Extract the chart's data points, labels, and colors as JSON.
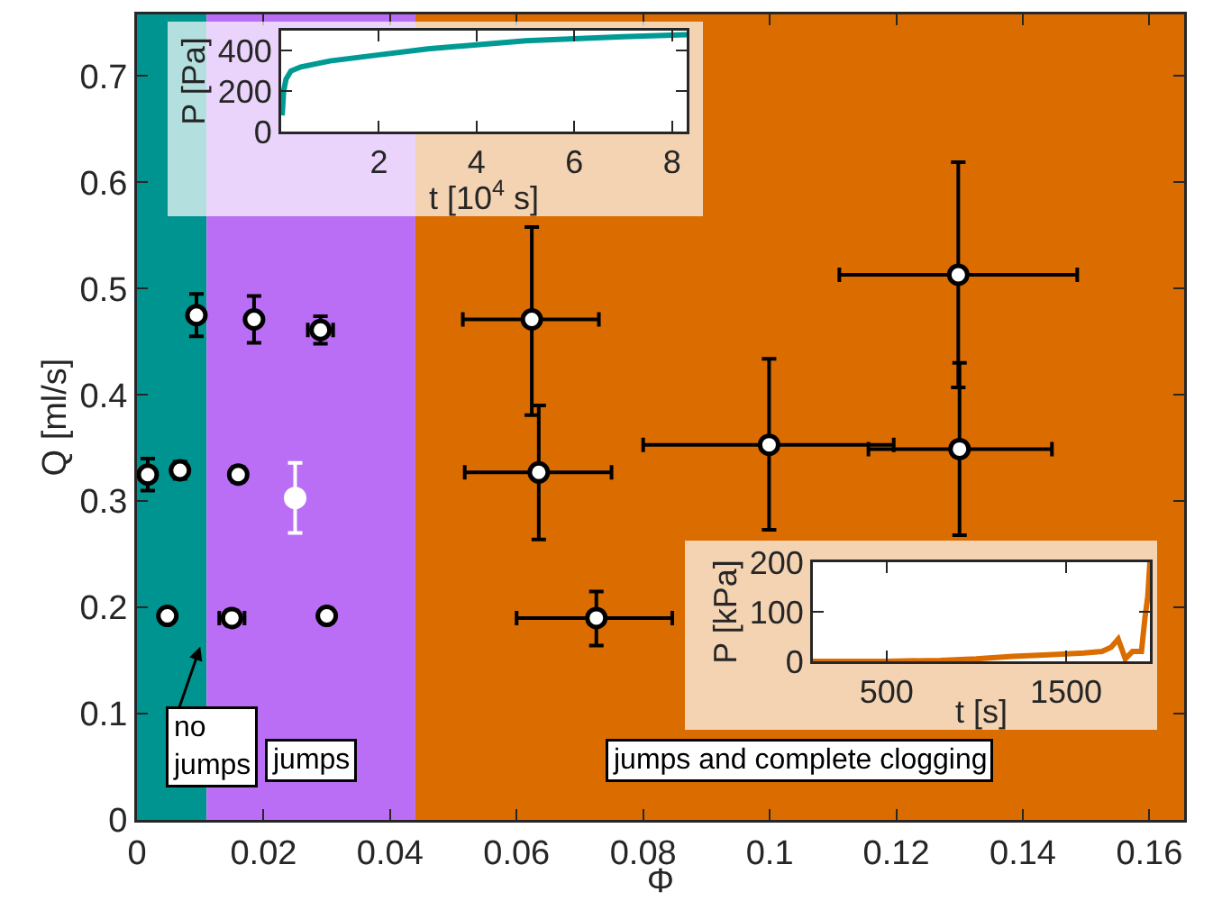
{
  "chart_data": [
    {
      "type": "scatter",
      "xlabel": "Φ",
      "ylabel": "Q [ml/s]",
      "xlim": [
        0,
        0.1655
      ],
      "ylim": [
        0,
        0.758
      ],
      "xticks": [
        0,
        0.02,
        0.04,
        0.06,
        0.08,
        0.1,
        0.12,
        0.14,
        0.16
      ],
      "yticks": [
        0,
        0.1,
        0.2,
        0.3,
        0.4,
        0.5,
        0.6,
        0.7
      ],
      "marker": "circle",
      "grid": false,
      "bands": [
        {
          "axis": "x",
          "from": 0,
          "to": 0.011,
          "color": "#009490",
          "label": "no jumps"
        },
        {
          "axis": "x",
          "from": 0.011,
          "to": 0.044,
          "color": "#b96ef5",
          "label": "jumps"
        },
        {
          "axis": "x",
          "from": 0.044,
          "to": 0.1655,
          "color": "#db6c00",
          "label": "jumps and complete clogging"
        }
      ],
      "series": [
        {
          "color": "#000000",
          "x": [
            0.0094,
            0.0185,
            0.029,
            0.0017,
            0.0068,
            0.016,
            0.0048,
            0.015,
            0.03,
            0.0624,
            0.0635,
            0.0726,
            0.0999,
            0.1298,
            0.13
          ],
          "values": [
            0.475,
            0.471,
            0.461,
            0.325,
            0.329,
            0.325,
            0.192,
            0.19,
            0.192,
            0.471,
            0.327,
            0.19,
            0.353,
            0.513,
            0.349
          ],
          "errors": [
            0.02,
            0.022,
            0.013,
            0.015,
            0.008,
            0.007,
            null,
            0.007,
            null,
            [
              0.381,
              0.558
            ],
            [
              0.264,
              0.39
            ],
            [
              0.164,
              0.215
            ],
            [
              0.273,
              0.434
            ],
            [
              0.407,
              0.619
            ],
            [
              0.268,
              0.43
            ]
          ],
          "xerrors": [
            null,
            null,
            0.002,
            null,
            null,
            null,
            0.001,
            0.002,
            null,
            [
              0.0515,
              0.073
            ],
            [
              0.0518,
              0.075
            ],
            [
              0.06,
              0.0846
            ],
            [
              0.08,
              0.1196
            ],
            [
              0.111,
              0.1486
            ],
            [
              0.1156,
              0.1446
            ]
          ]
        },
        {
          "color": "#ffffff",
          "x": [
            0.025
          ],
          "values": [
            0.303
          ],
          "errors": [
            0.033
          ]
        }
      ]
    },
    {
      "type": "line",
      "xlabel": "t [10$^{4}$ s]",
      "ylabel": "P [Pa]",
      "xlim": [
        0,
        8.3
      ],
      "ylim": [
        0,
        500
      ],
      "xticks": [
        2,
        4,
        6,
        8
      ],
      "yticks": [
        0,
        200,
        400
      ],
      "grid": false,
      "marker": "none",
      "series": [
        {
          "color": "#009a94",
          "x": [
            0.02,
            0.05,
            0.1,
            0.2,
            0.4,
            1,
            2,
            3,
            4,
            5,
            6,
            7,
            8.3
          ],
          "values": [
            80,
            200,
            260,
            300,
            320,
            350,
            380,
            410,
            430,
            450,
            460,
            470,
            480
          ]
        }
      ]
    },
    {
      "type": "line",
      "xlabel": "t [s]",
      "ylabel": "P [kPa]",
      "xlim": [
        90,
        1967
      ],
      "ylim": [
        0,
        200
      ],
      "xticks": [
        500,
        1500
      ],
      "yticks": [
        0,
        100,
        200
      ],
      "grid": false,
      "marker": "none",
      "series": [
        {
          "color": "#db6c00",
          "x": [
            90,
            500,
            800,
            1000,
            1200,
            1400,
            1500,
            1600,
            1700,
            1750,
            1790,
            1810,
            1830,
            1870,
            1920,
            1940,
            1955,
            1967
          ],
          "values": [
            0,
            0,
            2,
            5,
            10,
            13,
            15,
            17,
            20,
            28,
            45,
            25,
            5,
            20,
            20,
            90,
            130,
            200
          ]
        }
      ]
    }
  ]
}
